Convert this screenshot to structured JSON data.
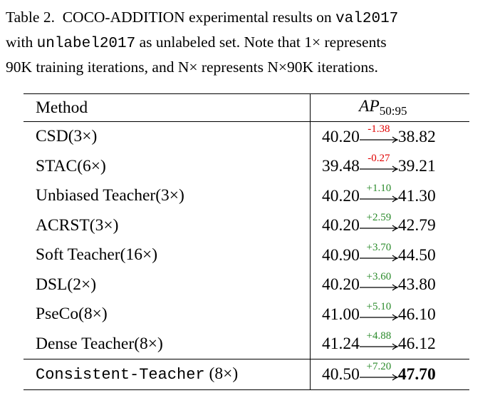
{
  "caption": {
    "label": "Table 2.",
    "line1_a": "COCO-",
    "line1_sc": "ADDITION",
    "line1_b": " experimental results on ",
    "line1_mono": "val2017",
    "line2_a": "with ",
    "line2_mono": "unlabel2017",
    "line2_b": " as unlabeled set.  Note that 1× represents",
    "line3": "90K training iterations, and N× represents N×90K iterations."
  },
  "table": {
    "header_method": "Method",
    "header_ap": "AP",
    "header_ap_sub": "50:95",
    "rows": [
      {
        "method": "CSD(3×)",
        "base": "40.20",
        "delta": "-1.38",
        "sign": "neg",
        "result": "38.82"
      },
      {
        "method": "STAC(6×)",
        "base": "39.48",
        "delta": "-0.27",
        "sign": "neg",
        "result": "39.21"
      },
      {
        "method": "Unbiased Teacher(3×)",
        "base": "40.20",
        "delta": "+1.10",
        "sign": "pos",
        "result": "41.30"
      },
      {
        "method": "ACRST(3×)",
        "base": "40.20",
        "delta": "+2.59",
        "sign": "pos",
        "result": "42.79"
      },
      {
        "method": "Soft Teacher(16×)",
        "base": "40.90",
        "delta": "+3.70",
        "sign": "pos",
        "result": "44.50"
      },
      {
        "method": "DSL(2×)",
        "base": "40.20",
        "delta": "+3.60",
        "sign": "pos",
        "result": "43.80"
      },
      {
        "method": "PseCo(8×)",
        "base": "41.00",
        "delta": "+5.10",
        "sign": "pos",
        "result": "46.10"
      },
      {
        "method": "Dense Teacher(8×)",
        "base": "41.24",
        "delta": "+4.88",
        "sign": "pos",
        "result": "46.12"
      }
    ],
    "final": {
      "method_mono": "Consistent-Teacher",
      "method_rest": " (8×)",
      "base": "40.50",
      "delta": "+7.20",
      "sign": "pos",
      "result": "47.70"
    }
  },
  "colors": {
    "negative": "#e00000",
    "positive": "#2a8a2a"
  }
}
